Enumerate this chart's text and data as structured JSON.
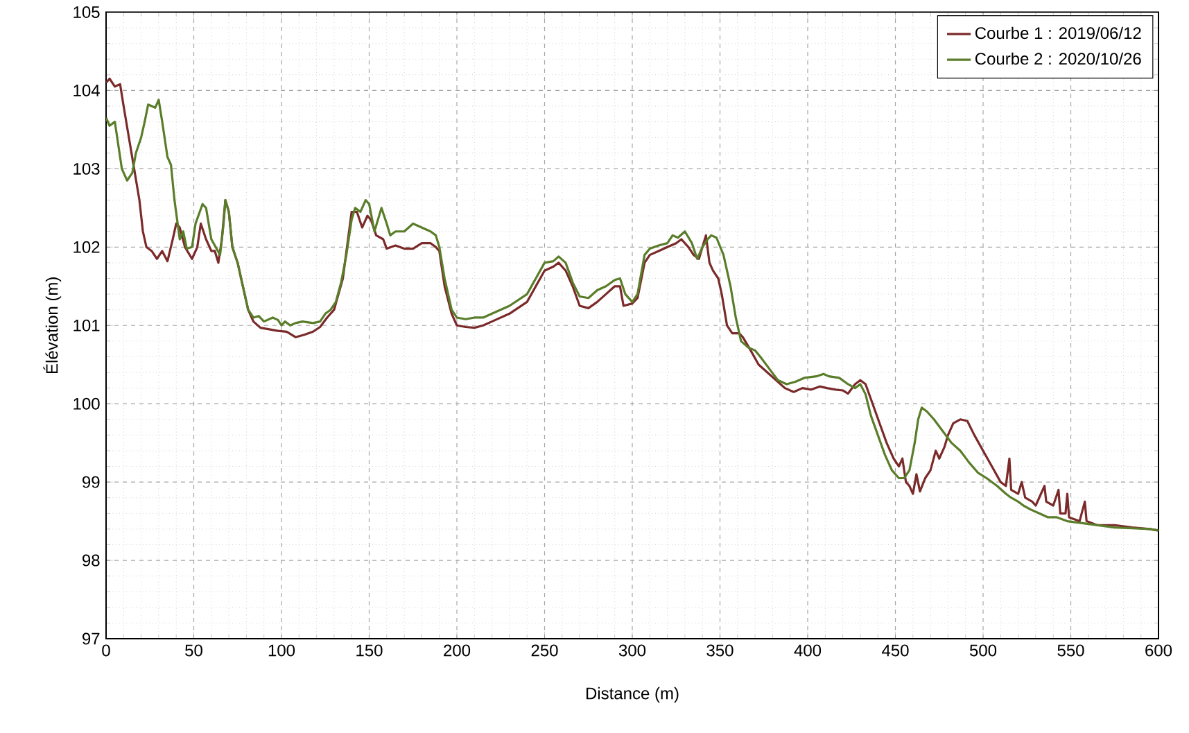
{
  "chart_data": {
    "type": "line",
    "xlabel": "Distance (m)",
    "ylabel": "Élévation (m)",
    "xlim": [
      0,
      600
    ],
    "ylim": [
      97,
      105
    ],
    "xticks": [
      0,
      50,
      100,
      150,
      200,
      250,
      300,
      350,
      400,
      450,
      500,
      550,
      600
    ],
    "yticks": [
      97,
      98,
      99,
      100,
      101,
      102,
      103,
      104,
      105
    ],
    "grid": true,
    "legend": "top right",
    "series": [
      {
        "name": "Courbe 1 : 2019/06/12",
        "color": "#7b2a2a",
        "x": [
          0,
          2,
          5,
          8,
          10,
          13,
          16,
          19,
          21,
          23,
          26,
          29,
          32,
          35,
          38,
          40,
          42,
          45,
          49,
          52,
          54,
          57,
          60,
          62,
          64,
          66,
          68,
          70,
          72,
          75,
          78,
          81,
          84,
          88,
          93,
          98,
          103,
          108,
          113,
          118,
          122,
          126,
          130,
          135,
          140,
          143,
          146,
          149,
          151,
          154,
          158,
          160,
          165,
          170,
          175,
          180,
          185,
          188,
          190,
          193,
          197,
          200,
          205,
          210,
          215,
          220,
          230,
          240,
          245,
          250,
          255,
          258,
          262,
          266,
          270,
          275,
          280,
          285,
          290,
          293,
          295,
          300,
          303,
          307,
          310,
          315,
          320,
          325,
          328,
          332,
          335,
          338,
          340,
          342,
          344,
          346,
          349,
          351,
          354,
          357,
          361,
          363,
          367,
          372,
          377,
          382,
          387,
          392,
          397,
          402,
          407,
          411,
          416,
          420,
          423,
          427,
          430,
          433,
          437,
          441,
          445,
          449,
          452,
          454,
          456,
          458,
          460,
          462,
          464,
          467,
          470,
          473,
          475,
          478,
          480,
          483,
          487,
          491,
          495,
          500,
          505,
          510,
          513,
          515,
          516,
          520,
          522,
          524,
          528,
          530,
          535,
          536,
          540,
          543,
          544,
          547,
          548,
          549,
          555,
          558,
          559,
          565,
          575,
          585,
          595,
          600
        ],
        "values": [
          104.1,
          104.15,
          104.05,
          104.08,
          103.8,
          103.4,
          103.0,
          102.6,
          102.2,
          102.0,
          101.95,
          101.85,
          101.95,
          101.82,
          102.1,
          102.3,
          102.25,
          102.0,
          101.85,
          102.0,
          102.3,
          102.1,
          101.95,
          101.95,
          101.8,
          102.1,
          102.6,
          102.45,
          102.0,
          101.8,
          101.5,
          101.2,
          101.05,
          100.97,
          100.95,
          100.93,
          100.92,
          100.85,
          100.88,
          100.92,
          100.98,
          101.1,
          101.2,
          101.6,
          102.45,
          102.45,
          102.25,
          102.4,
          102.35,
          102.15,
          102.1,
          101.98,
          102.02,
          101.98,
          101.98,
          102.05,
          102.05,
          102.0,
          101.95,
          101.5,
          101.15,
          101.0,
          100.98,
          100.97,
          101.0,
          101.05,
          101.15,
          101.3,
          101.5,
          101.7,
          101.75,
          101.8,
          101.7,
          101.5,
          101.25,
          101.22,
          101.3,
          101.4,
          101.5,
          101.5,
          101.25,
          101.28,
          101.35,
          101.8,
          101.9,
          101.95,
          102.0,
          102.05,
          102.1,
          102.0,
          101.9,
          101.85,
          102.0,
          102.15,
          101.8,
          101.7,
          101.6,
          101.4,
          101.0,
          100.9,
          100.9,
          100.85,
          100.7,
          100.5,
          100.4,
          100.3,
          100.2,
          100.15,
          100.2,
          100.18,
          100.22,
          100.2,
          100.18,
          100.17,
          100.13,
          100.25,
          100.3,
          100.25,
          100.0,
          99.75,
          99.5,
          99.3,
          99.2,
          99.3,
          99.0,
          98.95,
          98.85,
          99.1,
          98.88,
          99.05,
          99.15,
          99.4,
          99.3,
          99.45,
          99.6,
          99.75,
          99.8,
          99.78,
          99.6,
          99.4,
          99.2,
          99.0,
          98.95,
          99.3,
          98.9,
          98.85,
          99.0,
          98.8,
          98.75,
          98.7,
          98.95,
          98.75,
          98.7,
          98.9,
          98.6,
          98.6,
          98.85,
          98.55,
          98.5,
          98.75,
          98.5,
          98.45,
          98.45,
          98.42,
          98.4,
          98.38
        ]
      },
      {
        "name": "Courbe 2 : 2020/10/26",
        "color": "#5a7d2a",
        "x": [
          0,
          2,
          5,
          7,
          9,
          12,
          15,
          17,
          20,
          22,
          24,
          28,
          30,
          32,
          35,
          37,
          39,
          42,
          44,
          46,
          49,
          51,
          55,
          57,
          60,
          63,
          65,
          67,
          68,
          70,
          72,
          75,
          78,
          81,
          84,
          87,
          90,
          95,
          98,
          100,
          102,
          105,
          108,
          112,
          118,
          122,
          125,
          128,
          131,
          134,
          137,
          140,
          142,
          145,
          148,
          150,
          153,
          157,
          160,
          162,
          165,
          170,
          175,
          180,
          185,
          188,
          190,
          193,
          197,
          200,
          205,
          210,
          215,
          220,
          230,
          240,
          245,
          250,
          255,
          258,
          262,
          266,
          270,
          275,
          280,
          285,
          290,
          293,
          296,
          300,
          303,
          307,
          310,
          315,
          320,
          323,
          326,
          330,
          334,
          337,
          340,
          343,
          345,
          348,
          352,
          356,
          359,
          362,
          366,
          370,
          373,
          378,
          383,
          388,
          393,
          398,
          405,
          409,
          412,
          418,
          423,
          427,
          430,
          433,
          436,
          440,
          444,
          448,
          452,
          455,
          458,
          461,
          463,
          465,
          468,
          472,
          477,
          482,
          487,
          492,
          497,
          502,
          508,
          513,
          516,
          520,
          523,
          527,
          532,
          537,
          542,
          548,
          555,
          565,
          575,
          585,
          595,
          600
        ],
        "values": [
          103.65,
          103.55,
          103.6,
          103.3,
          103.0,
          102.85,
          102.95,
          103.2,
          103.4,
          103.6,
          103.82,
          103.78,
          103.88,
          103.6,
          103.15,
          103.05,
          102.6,
          102.1,
          102.2,
          101.98,
          102.0,
          102.3,
          102.55,
          102.5,
          102.1,
          101.98,
          101.9,
          102.3,
          102.6,
          102.45,
          102.0,
          101.8,
          101.5,
          101.2,
          101.1,
          101.12,
          101.05,
          101.1,
          101.07,
          101.0,
          101.05,
          101.0,
          101.03,
          101.05,
          101.03,
          101.05,
          101.15,
          101.2,
          101.3,
          101.55,
          101.9,
          102.35,
          102.5,
          102.45,
          102.6,
          102.55,
          102.2,
          102.5,
          102.3,
          102.15,
          102.2,
          102.2,
          102.3,
          102.25,
          102.2,
          102.15,
          102.0,
          101.6,
          101.2,
          101.1,
          101.08,
          101.1,
          101.1,
          101.15,
          101.25,
          101.4,
          101.6,
          101.8,
          101.82,
          101.88,
          101.8,
          101.55,
          101.37,
          101.35,
          101.45,
          101.5,
          101.58,
          101.6,
          101.4,
          101.3,
          101.4,
          101.9,
          101.98,
          102.02,
          102.05,
          102.15,
          102.12,
          102.2,
          102.05,
          101.85,
          102.0,
          102.1,
          102.15,
          102.12,
          101.9,
          101.5,
          101.1,
          100.8,
          100.72,
          100.68,
          100.6,
          100.45,
          100.3,
          100.25,
          100.28,
          100.33,
          100.35,
          100.38,
          100.35,
          100.33,
          100.25,
          100.2,
          100.25,
          100.12,
          99.85,
          99.6,
          99.35,
          99.15,
          99.05,
          99.05,
          99.15,
          99.5,
          99.8,
          99.95,
          99.9,
          99.8,
          99.65,
          99.5,
          99.4,
          99.25,
          99.12,
          99.05,
          98.95,
          98.85,
          98.8,
          98.75,
          98.7,
          98.65,
          98.6,
          98.55,
          98.55,
          98.5,
          98.48,
          98.45,
          98.42,
          98.41,
          98.4,
          98.38
        ]
      }
    ]
  }
}
